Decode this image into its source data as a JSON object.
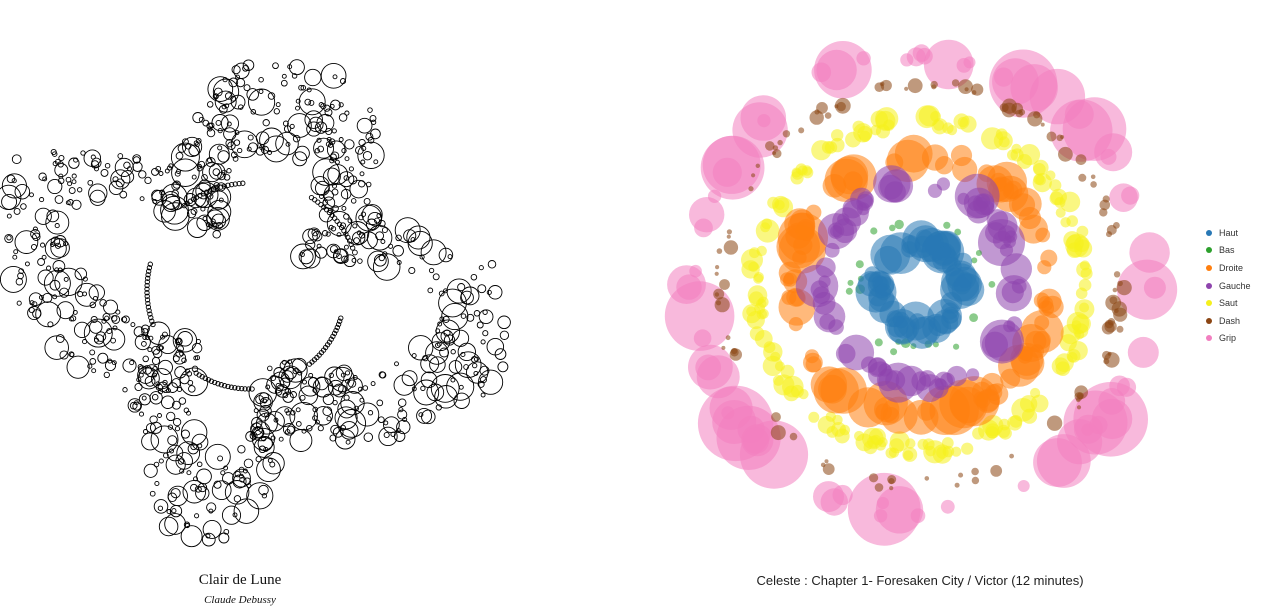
{
  "chart_data": [
    {
      "type": "scatter",
      "style": "bubble",
      "title": "Clair de Lune",
      "subtitle": "Claude Debussy",
      "marker": "outline-circle",
      "color": "#000000"
    },
    {
      "type": "scatter",
      "style": "radial-bubble",
      "title": "Celeste : Chapter 1- Foresaken City / Victor (12 minutes)",
      "legend_position": "right",
      "series": [
        {
          "name": "Haut",
          "color": "#2878b5",
          "ring_radius": 0.18,
          "count": 60,
          "size_range": [
            8,
            22
          ]
        },
        {
          "name": "Bas",
          "color": "#2ca02c",
          "ring_radius": 0.28,
          "count": 22,
          "size_range": [
            3,
            5
          ]
        },
        {
          "name": "Droite",
          "color": "#ff7f0e",
          "ring_radius": 0.55,
          "count": 95,
          "size_range": [
            7,
            26
          ]
        },
        {
          "name": "Gauche",
          "color": "#8e44ad",
          "ring_radius": 0.42,
          "count": 75,
          "size_range": [
            6,
            24
          ]
        },
        {
          "name": "Saut",
          "color": "#f5f01c",
          "ring_radius": 0.7,
          "count": 170,
          "size_range": [
            5,
            12
          ]
        },
        {
          "name": "Dash",
          "color": "#8b4513",
          "ring_radius": 0.85,
          "count": 110,
          "size_range": [
            2,
            8
          ]
        },
        {
          "name": "Grip",
          "color": "#f27fc0",
          "ring_radius": 0.97,
          "count": 75,
          "size_range": [
            6,
            38
          ]
        }
      ]
    }
  ]
}
